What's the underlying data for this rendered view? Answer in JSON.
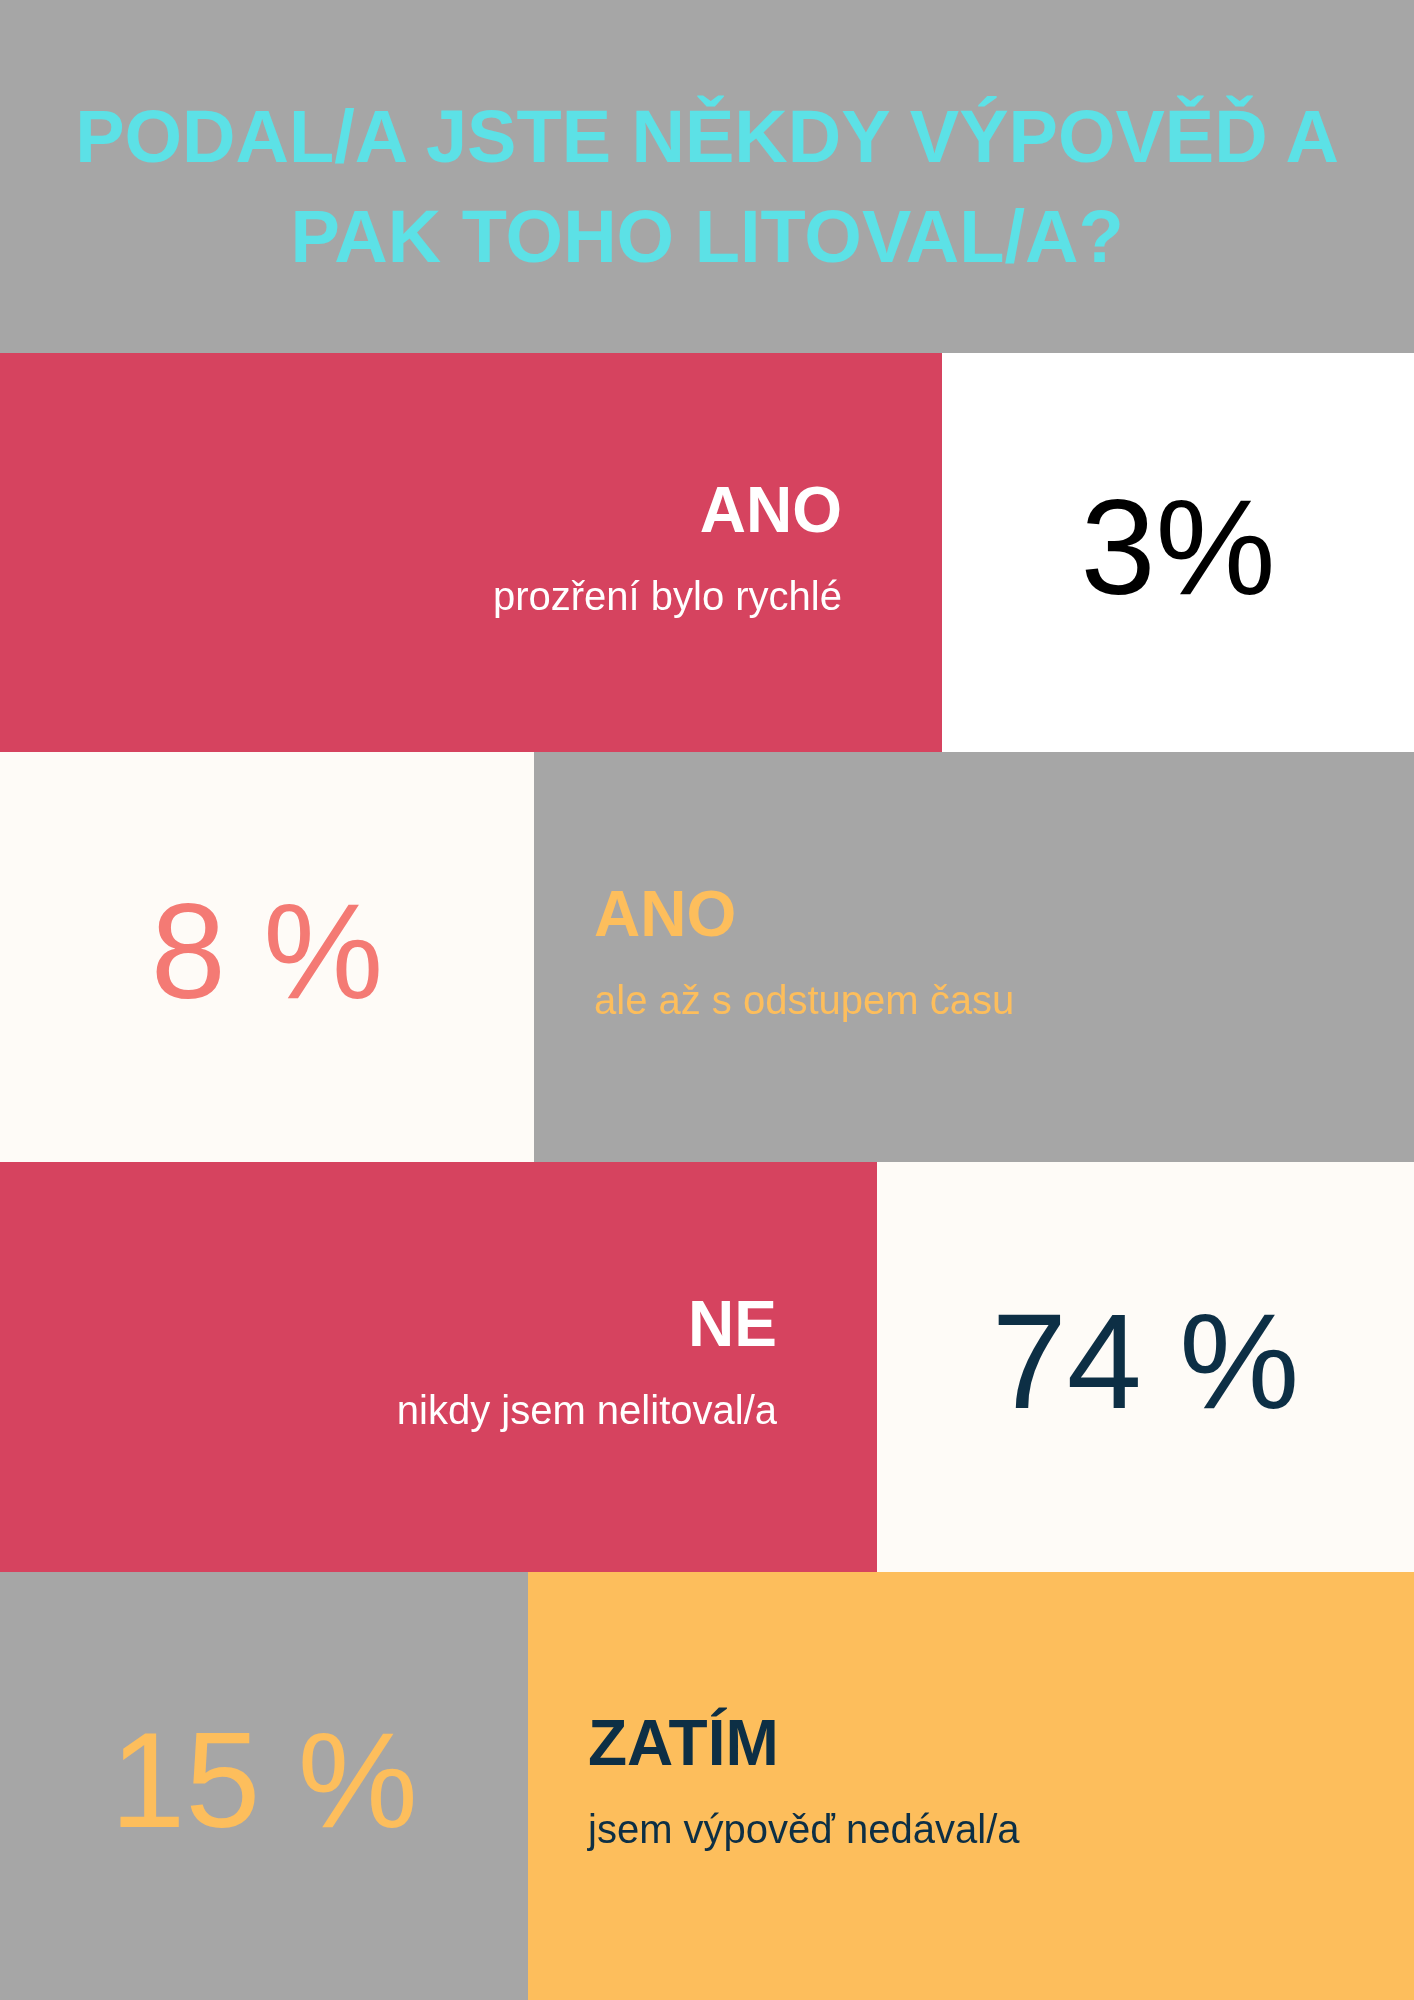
{
  "chart_data": {
    "type": "other",
    "title": "PODAL/A JSTE NĚKDY VÝPOVĚĎ A PAK TOHO LITOVAL/A?",
    "categories": [
      "ANO",
      "ANO",
      "NE",
      "ZATÍM"
    ],
    "annotations": [
      "prozření bylo rychlé",
      "ale až s odstupem času",
      "nikdy jsem nelitoval/a",
      "jsem výpověď nedával/a"
    ],
    "values": [
      3,
      8,
      74,
      15
    ],
    "value_labels": [
      "3%",
      "8 %",
      "74 %",
      "15 %"
    ]
  }
}
